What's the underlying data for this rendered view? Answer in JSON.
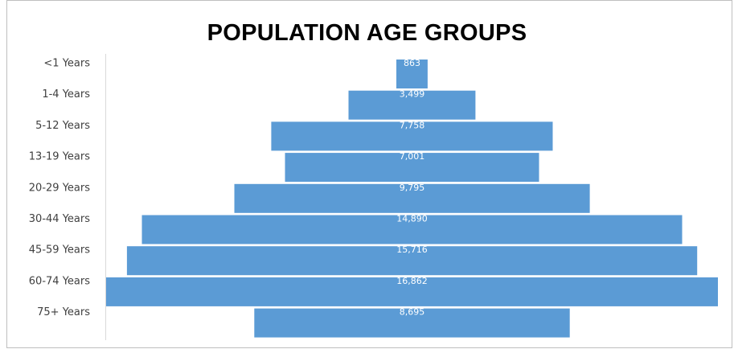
{
  "chart_data": {
    "type": "bar",
    "orientation": "horizontal",
    "layout": "centered-pyramid",
    "title": "POPULATION AGE GROUPS",
    "categories": [
      "<1 Years",
      "1-4 Years",
      "5-12 Years",
      "13-19 Years",
      "20-29 Years",
      "30-44 Years",
      "45-59 Years",
      "60-74 Years",
      "75+ Years"
    ],
    "values": [
      863,
      3499,
      7758,
      7001,
      9795,
      14890,
      15716,
      16862,
      8695
    ],
    "value_labels": [
      "863",
      "3,499",
      "7,758",
      "7,001",
      "9,795",
      "14,890",
      "15,716",
      "16,862",
      "8,695"
    ],
    "xlim": [
      0,
      16862
    ],
    "grid": false,
    "legend": "none",
    "bar_color": "#5b9bd5",
    "label_color": "#ffffff"
  }
}
